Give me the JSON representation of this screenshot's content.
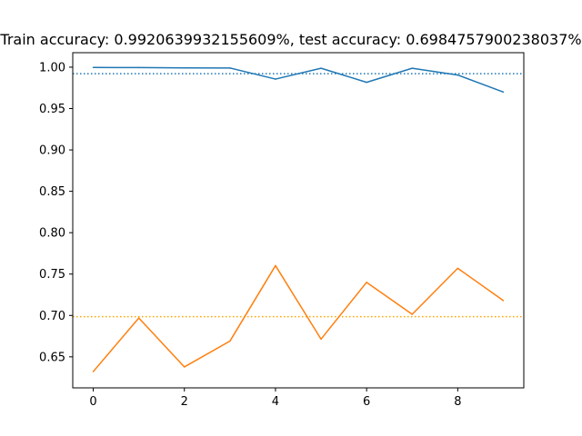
{
  "chart_data": {
    "type": "line",
    "title": "Train accuracy: 0.9920639932155609%, test accuracy: 0.6984757900238037%",
    "xlabel": "",
    "ylabel": "",
    "x": [
      0,
      1,
      2,
      3,
      4,
      5,
      6,
      7,
      8,
      9
    ],
    "xlim": [
      -0.45,
      9.45
    ],
    "ylim": [
      0.6125,
      1.0175
    ],
    "xticks": [
      0,
      2,
      4,
      6,
      8
    ],
    "yticks": [
      0.65,
      0.7,
      0.75,
      0.8,
      0.85,
      0.9,
      0.95,
      1.0
    ],
    "ytick_labels": [
      "0.65",
      "0.70",
      "0.75",
      "0.80",
      "0.85",
      "0.90",
      "0.95",
      "1.00"
    ],
    "grid": false,
    "series": [
      {
        "color": "#1f77b4",
        "values": [
          0.9996,
          0.9995,
          0.9991,
          0.999,
          0.9856,
          0.9987,
          0.9817,
          0.9987,
          0.9905,
          0.97
        ]
      },
      {
        "color": "#ff7f0e",
        "values": [
          0.6322,
          0.6969,
          0.6378,
          0.669,
          0.7602,
          0.6714,
          0.74,
          0.7014,
          0.757,
          0.718
        ]
      }
    ],
    "reference_lines": [
      {
        "y": 0.9920639932155609,
        "color": "#1f77b4",
        "style": "dotted"
      },
      {
        "y": 0.6984757900238037,
        "color": "#ffa500",
        "style": "dotted"
      }
    ]
  }
}
